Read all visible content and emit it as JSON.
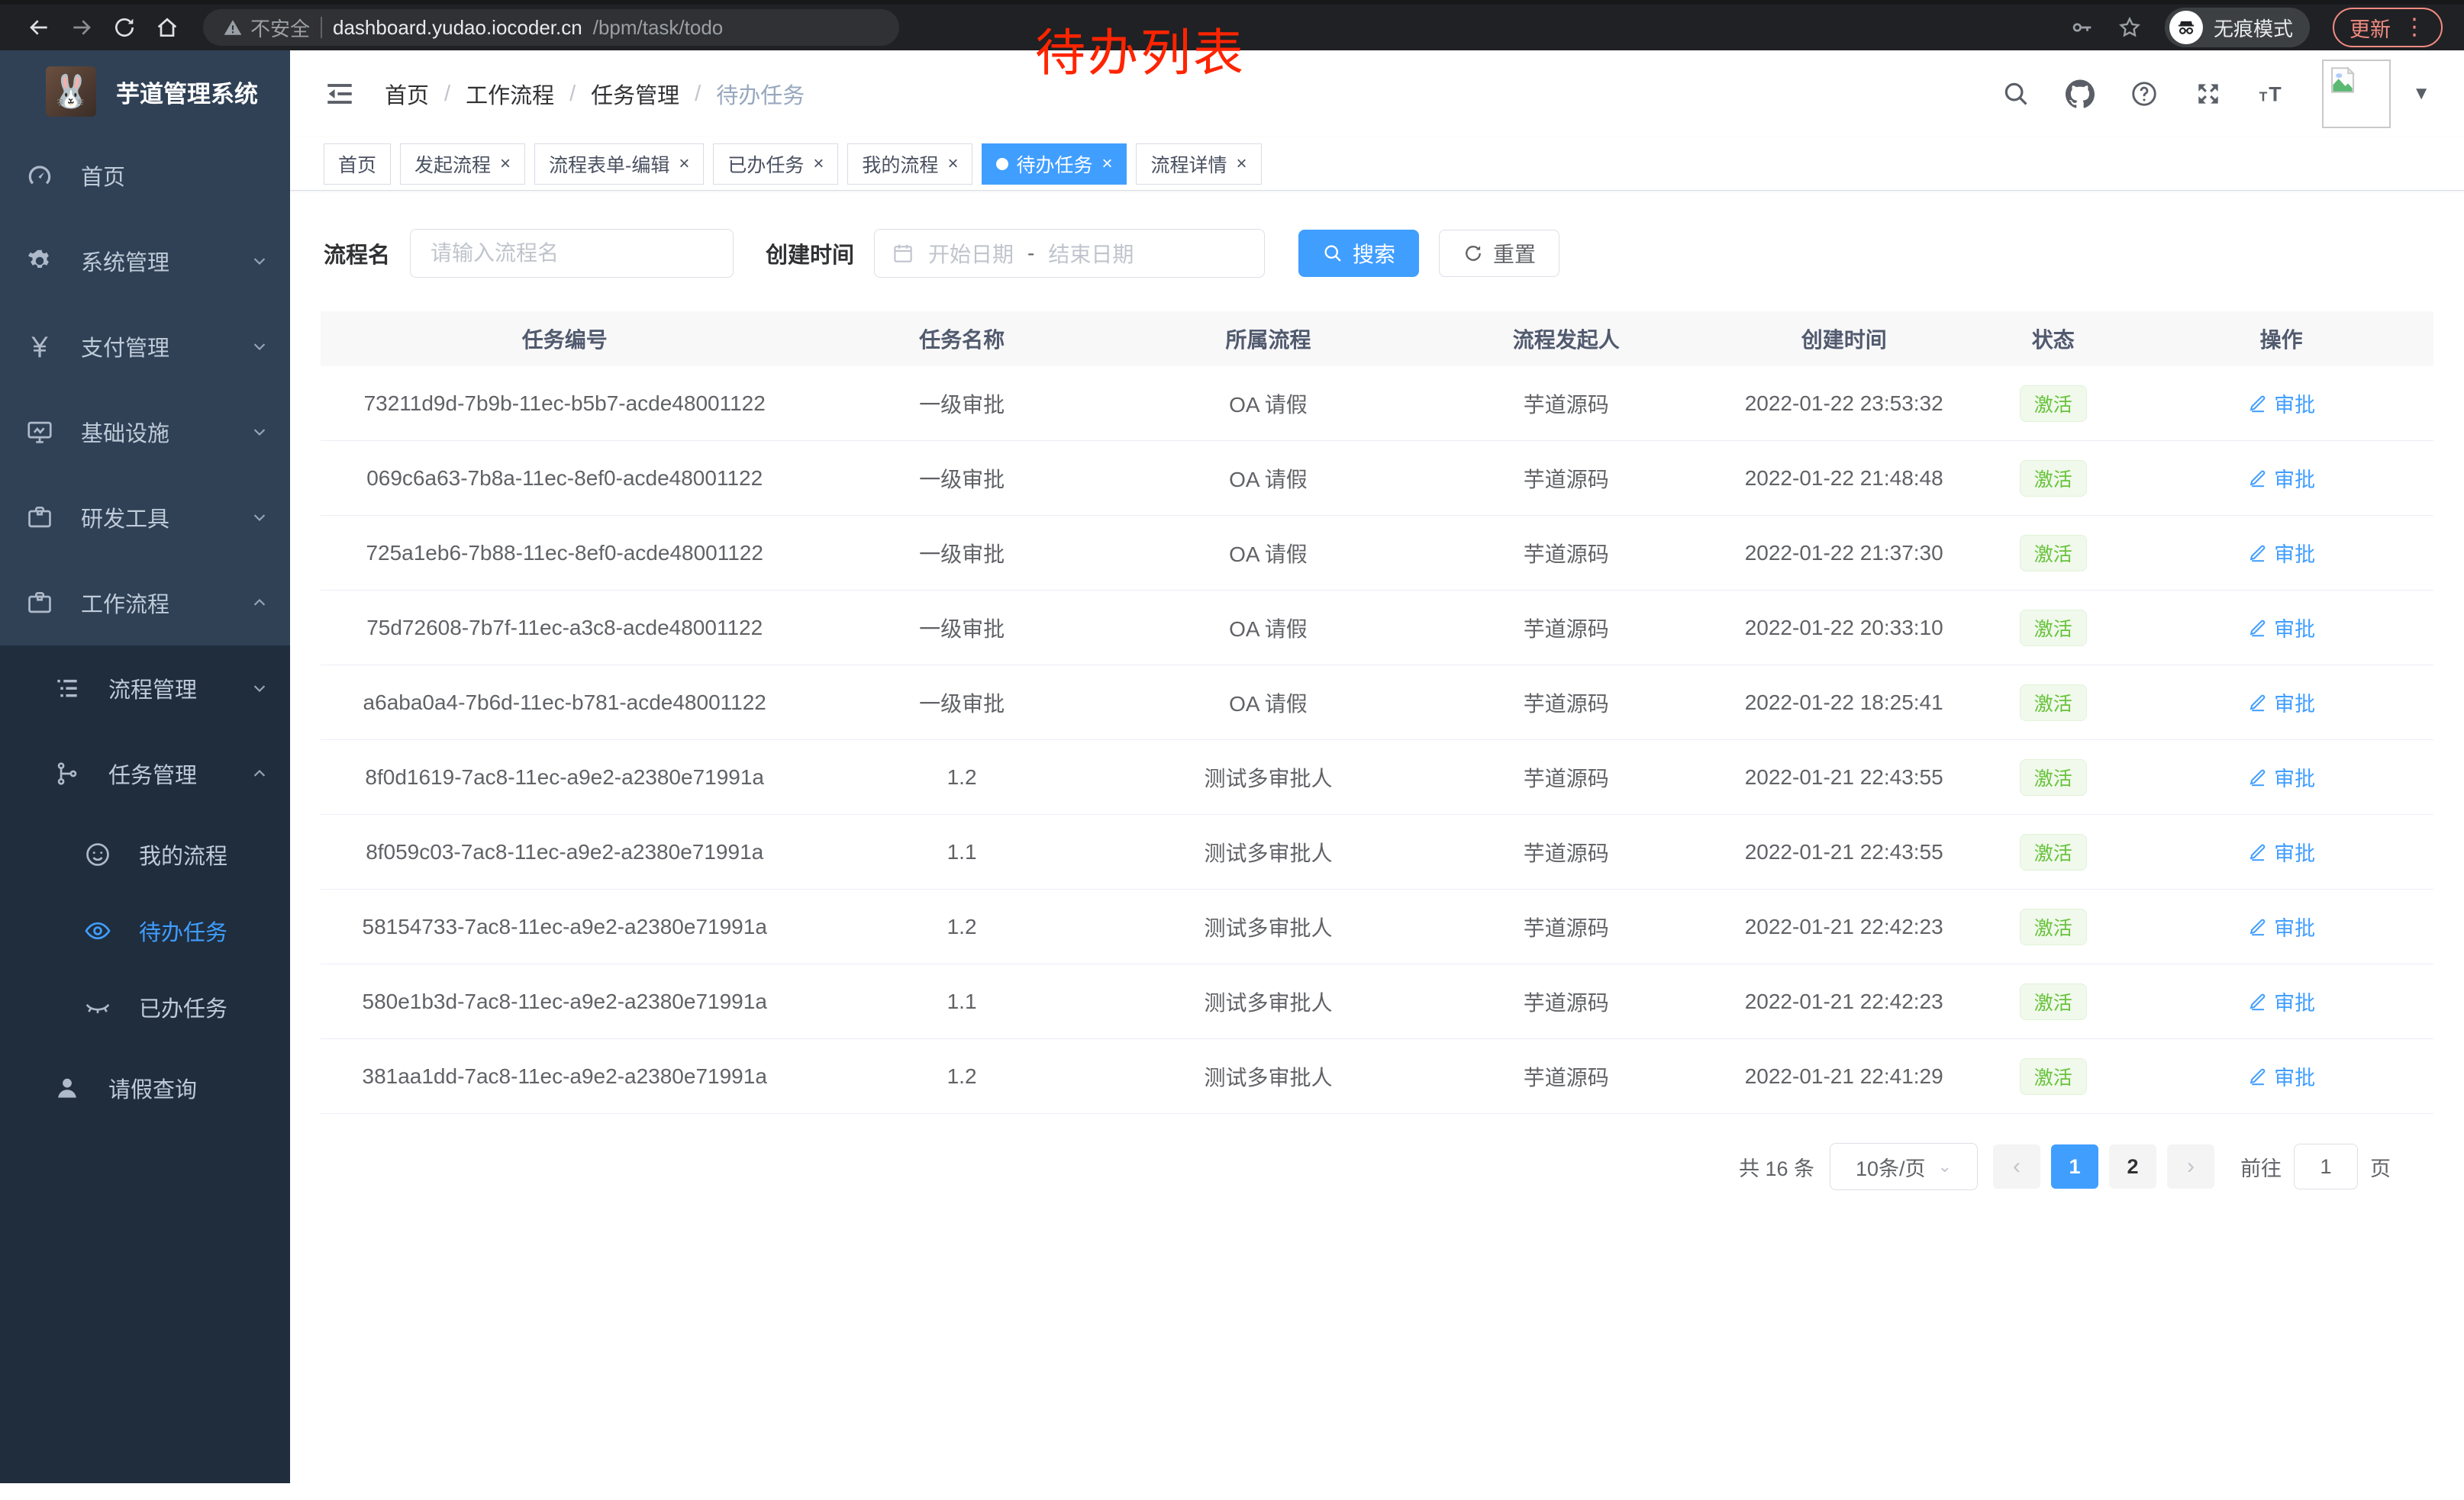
{
  "browser": {
    "security_label": "不安全",
    "url_host": "dashboard.yudao.iocoder.cn",
    "url_path": "/bpm/task/todo",
    "incognito_label": "无痕模式",
    "update_label": "更新"
  },
  "annotation": {
    "text": "待办列表",
    "color": "#ff2400"
  },
  "sidebar": {
    "title": "芋道管理系统",
    "menu": [
      {
        "key": "home",
        "icon": "dashboard-icon",
        "label": "首页",
        "chevron": null
      },
      {
        "key": "system",
        "icon": "gear-icon",
        "label": "系统管理",
        "chevron": "down"
      },
      {
        "key": "payment",
        "icon": "yen-icon",
        "label": "支付管理",
        "chevron": "down"
      },
      {
        "key": "infra",
        "icon": "monitor-icon",
        "label": "基础设施",
        "chevron": "down"
      },
      {
        "key": "devtools",
        "icon": "briefcase-icon",
        "label": "研发工具",
        "chevron": "down"
      },
      {
        "key": "workflow",
        "icon": "briefcase-icon",
        "label": "工作流程",
        "chevron": "up"
      }
    ],
    "submenu": [
      {
        "key": "process-mgmt",
        "icon": "list-tree-icon",
        "label": "流程管理",
        "level": 1,
        "chevron": "down",
        "active": false
      },
      {
        "key": "task-mgmt",
        "icon": "tree-icon",
        "label": "任务管理",
        "level": 1,
        "chevron": "up",
        "active": false
      },
      {
        "key": "my-process",
        "icon": "face-icon",
        "label": "我的流程",
        "level": 2,
        "chevron": null,
        "active": false
      },
      {
        "key": "todo-task",
        "icon": "eye-icon",
        "label": "待办任务",
        "level": 2,
        "chevron": null,
        "active": true
      },
      {
        "key": "done-task",
        "icon": "eye-closed-icon",
        "label": "已办任务",
        "level": 2,
        "chevron": null,
        "active": false
      },
      {
        "key": "leave-query",
        "icon": "user-icon",
        "label": "请假查询",
        "level": 1,
        "chevron": null,
        "active": false
      }
    ]
  },
  "header": {
    "breadcrumb": [
      "首页",
      "工作流程",
      "任务管理",
      "待办任务"
    ]
  },
  "tabs": [
    {
      "key": "home",
      "label": "首页",
      "closable": false,
      "active": false
    },
    {
      "key": "start-process",
      "label": "发起流程",
      "closable": true,
      "active": false
    },
    {
      "key": "form-edit",
      "label": "流程表单-编辑",
      "closable": true,
      "active": false
    },
    {
      "key": "done-task",
      "label": "已办任务",
      "closable": true,
      "active": false
    },
    {
      "key": "my-process",
      "label": "我的流程",
      "closable": true,
      "active": false
    },
    {
      "key": "todo-task",
      "label": "待办任务",
      "closable": true,
      "active": true
    },
    {
      "key": "process-detail",
      "label": "流程详情",
      "closable": true,
      "active": false
    }
  ],
  "filters": {
    "name_label": "流程名",
    "name_placeholder": "请输入流程名",
    "time_label": "创建时间",
    "start_placeholder": "开始日期",
    "range_separator": "-",
    "end_placeholder": "结束日期",
    "search_label": "搜索",
    "reset_label": "重置"
  },
  "table": {
    "columns": [
      "任务编号",
      "任务名称",
      "所属流程",
      "流程发起人",
      "创建时间",
      "状态",
      "操作"
    ],
    "rows": [
      {
        "id": "73211d9d-7b9b-11ec-b5b7-acde48001122",
        "name": "一级审批",
        "process": "OA 请假",
        "starter": "芋道源码",
        "time": "2022-01-22 23:53:32",
        "status": "激活",
        "action": "审批"
      },
      {
        "id": "069c6a63-7b8a-11ec-8ef0-acde48001122",
        "name": "一级审批",
        "process": "OA 请假",
        "starter": "芋道源码",
        "time": "2022-01-22 21:48:48",
        "status": "激活",
        "action": "审批"
      },
      {
        "id": "725a1eb6-7b88-11ec-8ef0-acde48001122",
        "name": "一级审批",
        "process": "OA 请假",
        "starter": "芋道源码",
        "time": "2022-01-22 21:37:30",
        "status": "激活",
        "action": "审批"
      },
      {
        "id": "75d72608-7b7f-11ec-a3c8-acde48001122",
        "name": "一级审批",
        "process": "OA 请假",
        "starter": "芋道源码",
        "time": "2022-01-22 20:33:10",
        "status": "激活",
        "action": "审批"
      },
      {
        "id": "a6aba0a4-7b6d-11ec-b781-acde48001122",
        "name": "一级审批",
        "process": "OA 请假",
        "starter": "芋道源码",
        "time": "2022-01-22 18:25:41",
        "status": "激活",
        "action": "审批"
      },
      {
        "id": "8f0d1619-7ac8-11ec-a9e2-a2380e71991a",
        "name": "1.2",
        "process": "测试多审批人",
        "starter": "芋道源码",
        "time": "2022-01-21 22:43:55",
        "status": "激活",
        "action": "审批"
      },
      {
        "id": "8f059c03-7ac8-11ec-a9e2-a2380e71991a",
        "name": "1.1",
        "process": "测试多审批人",
        "starter": "芋道源码",
        "time": "2022-01-21 22:43:55",
        "status": "激活",
        "action": "审批"
      },
      {
        "id": "58154733-7ac8-11ec-a9e2-a2380e71991a",
        "name": "1.2",
        "process": "测试多审批人",
        "starter": "芋道源码",
        "time": "2022-01-21 22:42:23",
        "status": "激活",
        "action": "审批"
      },
      {
        "id": "580e1b3d-7ac8-11ec-a9e2-a2380e71991a",
        "name": "1.1",
        "process": "测试多审批人",
        "starter": "芋道源码",
        "time": "2022-01-21 22:42:23",
        "status": "激活",
        "action": "审批"
      },
      {
        "id": "381aa1dd-7ac8-11ec-a9e2-a2380e71991a",
        "name": "1.2",
        "process": "测试多审批人",
        "starter": "芋道源码",
        "time": "2022-01-21 22:41:29",
        "status": "激活",
        "action": "审批"
      }
    ]
  },
  "pagination": {
    "total": "共 16 条",
    "page_size": "10条/页",
    "prev": "‹",
    "next": "›",
    "pages": [
      "1",
      "2"
    ],
    "active_page": "1",
    "goto_label": "前往",
    "goto_value": "1",
    "unit_label": "页"
  },
  "colors": {
    "accent": "#409eff",
    "success": "#67c23a",
    "sidebar_bg": "#304156",
    "submenu_bg": "#1f2d3d",
    "annotation": "#ff2400"
  }
}
